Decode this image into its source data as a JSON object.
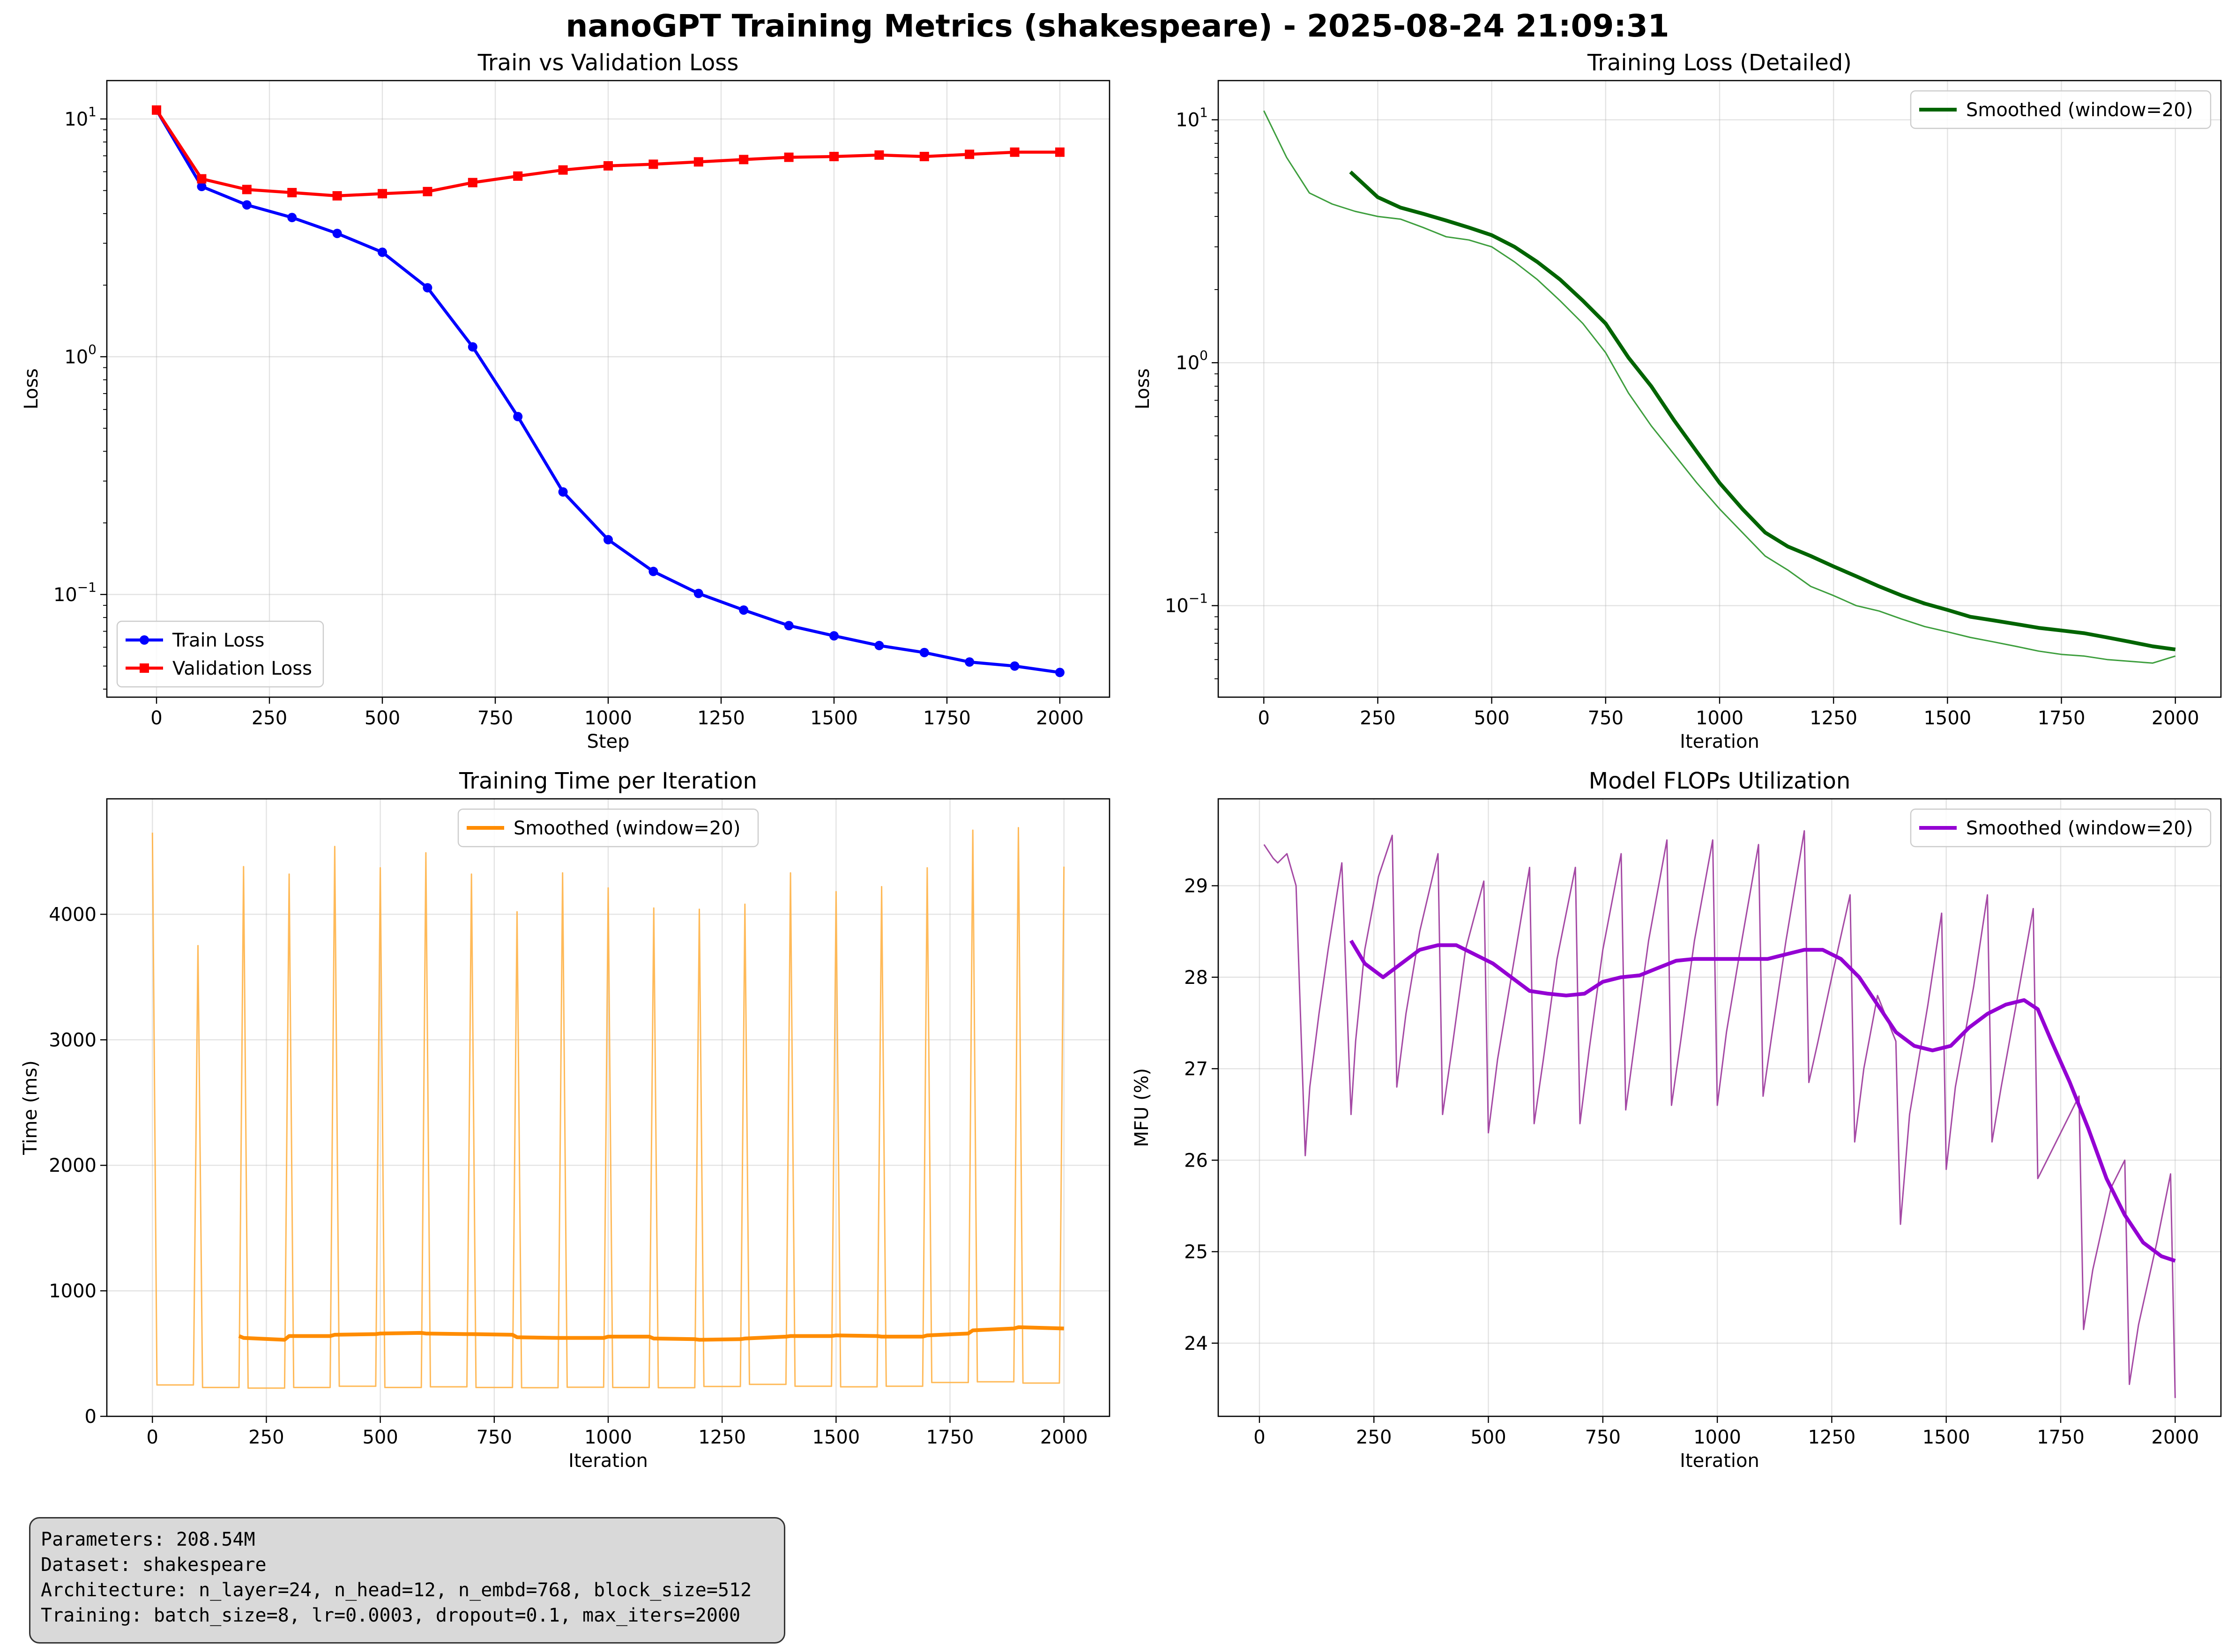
{
  "figure": {
    "title": "nanoGPT Training Metrics (shakespeare) - 2025-08-24 21:09:31"
  },
  "info_box": {
    "lines": [
      "Parameters: 208.54M",
      "Dataset: shakespeare",
      "Architecture: n_layer=24, n_head=12, n_embd=768, block_size=512",
      "Training: batch_size=8, lr=0.0003, dropout=0.1, max_iters=2000"
    ]
  },
  "chart_data": [
    {
      "id": "loss",
      "type": "line",
      "title": "Train vs Validation Loss",
      "xlabel": "Step",
      "ylabel": "Loss",
      "yscale": "log",
      "xlim": [
        -110,
        2110
      ],
      "ylim": [
        0.037,
        14.5
      ],
      "xticks": [
        0,
        250,
        500,
        750,
        1000,
        1250,
        1500,
        1750,
        2000
      ],
      "yticks": [
        {
          "value": 0.1,
          "label": "10",
          "exp": "−1"
        },
        {
          "value": 1,
          "label": "10",
          "exp": "0"
        },
        {
          "value": 10,
          "label": "10",
          "exp": "1"
        }
      ],
      "grid": true,
      "legend_position": "lower-left",
      "x": [
        0,
        100,
        200,
        300,
        400,
        500,
        600,
        700,
        800,
        900,
        1000,
        1100,
        1200,
        1300,
        1400,
        1500,
        1600,
        1700,
        1800,
        1900,
        2000
      ],
      "series": [
        {
          "name": "Train Loss",
          "color": "#0000ff",
          "marker": "circle",
          "values": [
            10.9,
            5.2,
            4.35,
            3.85,
            3.3,
            2.75,
            1.95,
            1.1,
            0.56,
            0.27,
            0.17,
            0.125,
            0.101,
            0.086,
            0.074,
            0.067,
            0.061,
            0.057,
            0.052,
            0.05,
            0.047
          ]
        },
        {
          "name": "Validation Loss",
          "color": "#ff0000",
          "marker": "square",
          "values": [
            10.9,
            5.6,
            5.05,
            4.9,
            4.75,
            4.85,
            4.95,
            5.4,
            5.75,
            6.1,
            6.35,
            6.45,
            6.6,
            6.75,
            6.9,
            6.95,
            7.05,
            6.95,
            7.1,
            7.25,
            7.25
          ]
        }
      ]
    },
    {
      "id": "trainloss",
      "type": "line",
      "title": "Training Loss (Detailed)",
      "xlabel": "Iteration",
      "ylabel": "Loss",
      "yscale": "log",
      "xlim": [
        -100,
        2100
      ],
      "ylim": [
        0.042,
        14.5
      ],
      "xticks": [
        0,
        250,
        500,
        750,
        1000,
        1250,
        1500,
        1750,
        2000
      ],
      "yticks": [
        {
          "value": 0.1,
          "label": "10",
          "exp": "−1"
        },
        {
          "value": 1,
          "label": "10",
          "exp": "0"
        },
        {
          "value": 10,
          "label": "10",
          "exp": "1"
        }
      ],
      "grid": true,
      "legend_position": "upper-right",
      "raw": {
        "color": "#339933",
        "x": [
          0,
          50,
          100,
          150,
          200,
          250,
          300,
          350,
          400,
          450,
          500,
          550,
          600,
          650,
          700,
          750,
          800,
          850,
          900,
          950,
          1000,
          1050,
          1100,
          1150,
          1200,
          1250,
          1300,
          1350,
          1400,
          1450,
          1500,
          1550,
          1600,
          1650,
          1700,
          1750,
          1800,
          1850,
          1900,
          1950,
          2000
        ],
        "values": [
          10.9,
          7.0,
          5.0,
          4.5,
          4.2,
          4.0,
          3.9,
          3.6,
          3.3,
          3.2,
          3.0,
          2.6,
          2.2,
          1.8,
          1.45,
          1.1,
          0.75,
          0.55,
          0.42,
          0.32,
          0.25,
          0.2,
          0.16,
          0.14,
          0.12,
          0.11,
          0.1,
          0.095,
          0.088,
          0.082,
          0.078,
          0.074,
          0.071,
          0.068,
          0.065,
          0.063,
          0.062,
          0.06,
          0.059,
          0.058,
          0.062
        ]
      },
      "series": [
        {
          "name": "Smoothed (window=20)",
          "color": "#006400",
          "x": [
            190,
            250,
            300,
            350,
            400,
            450,
            500,
            550,
            600,
            650,
            700,
            750,
            800,
            850,
            900,
            950,
            1000,
            1050,
            1100,
            1150,
            1200,
            1250,
            1300,
            1350,
            1400,
            1450,
            1500,
            1550,
            1600,
            1650,
            1700,
            1750,
            1800,
            1850,
            1900,
            1950,
            2000
          ],
          "values": [
            6.1,
            4.8,
            4.35,
            4.1,
            3.85,
            3.6,
            3.35,
            3.0,
            2.6,
            2.2,
            1.8,
            1.45,
            1.05,
            0.8,
            0.58,
            0.43,
            0.32,
            0.25,
            0.2,
            0.175,
            0.16,
            0.145,
            0.132,
            0.12,
            0.11,
            0.102,
            0.096,
            0.09,
            0.087,
            0.084,
            0.081,
            0.079,
            0.077,
            0.074,
            0.071,
            0.068,
            0.066
          ]
        }
      ]
    },
    {
      "id": "time",
      "type": "line",
      "title": "Training Time per Iteration",
      "xlabel": "Iteration",
      "ylabel": "Time (ms)",
      "yscale": "linear",
      "xlim": [
        -100,
        2100
      ],
      "ylim": [
        0,
        4920
      ],
      "xticks": [
        0,
        250,
        500,
        750,
        1000,
        1250,
        1500,
        1750,
        2000
      ],
      "yticks": [
        {
          "value": 0,
          "label": "0"
        },
        {
          "value": 1000,
          "label": "1000"
        },
        {
          "value": 2000,
          "label": "2000"
        },
        {
          "value": 3000,
          "label": "3000"
        },
        {
          "value": 4000,
          "label": "4000"
        }
      ],
      "grid": true,
      "legend_position": "upper-center",
      "raw": {
        "color": "#ffb347",
        "spikes": [
          {
            "x": 0,
            "value": 4650
          },
          {
            "x": 100,
            "value": 3750
          },
          {
            "x": 200,
            "value": 4380
          },
          {
            "x": 300,
            "value": 4320
          },
          {
            "x": 400,
            "value": 4540
          },
          {
            "x": 500,
            "value": 4370
          },
          {
            "x": 600,
            "value": 4490
          },
          {
            "x": 700,
            "value": 4320
          },
          {
            "x": 800,
            "value": 4020
          },
          {
            "x": 900,
            "value": 4330
          },
          {
            "x": 1000,
            "value": 4210
          },
          {
            "x": 1100,
            "value": 4050
          },
          {
            "x": 1200,
            "value": 4040
          },
          {
            "x": 1300,
            "value": 4080
          },
          {
            "x": 1400,
            "value": 4330
          },
          {
            "x": 1500,
            "value": 4180
          },
          {
            "x": 1600,
            "value": 4220
          },
          {
            "x": 1700,
            "value": 4370
          },
          {
            "x": 1800,
            "value": 4670
          },
          {
            "x": 1900,
            "value": 4690
          },
          {
            "x": 2000,
            "value": 4380
          }
        ],
        "baseline": [
          {
            "x0": 10,
            "x1": 90,
            "value": 250
          },
          {
            "x0": 110,
            "x1": 190,
            "value": 230
          },
          {
            "x0": 210,
            "x1": 290,
            "value": 225
          },
          {
            "x0": 310,
            "x1": 390,
            "value": 230
          },
          {
            "x0": 410,
            "x1": 490,
            "value": 240
          },
          {
            "x0": 510,
            "x1": 590,
            "value": 230
          },
          {
            "x0": 610,
            "x1": 690,
            "value": 235
          },
          {
            "x0": 710,
            "x1": 790,
            "value": 230
          },
          {
            "x0": 810,
            "x1": 890,
            "value": 228
          },
          {
            "x0": 910,
            "x1": 990,
            "value": 232
          },
          {
            "x0": 1010,
            "x1": 1090,
            "value": 230
          },
          {
            "x0": 1110,
            "x1": 1190,
            "value": 228
          },
          {
            "x0": 1210,
            "x1": 1290,
            "value": 238
          },
          {
            "x0": 1310,
            "x1": 1390,
            "value": 255
          },
          {
            "x0": 1410,
            "x1": 1490,
            "value": 240
          },
          {
            "x0": 1510,
            "x1": 1590,
            "value": 235
          },
          {
            "x0": 1610,
            "x1": 1690,
            "value": 240
          },
          {
            "x0": 1710,
            "x1": 1790,
            "value": 270
          },
          {
            "x0": 1810,
            "x1": 1890,
            "value": 275
          },
          {
            "x0": 1910,
            "x1": 1990,
            "value": 265
          }
        ]
      },
      "series": [
        {
          "name": "Smoothed (window=20)",
          "color": "#ff8c00",
          "x": [
            190,
            200,
            290,
            300,
            390,
            400,
            490,
            500,
            590,
            600,
            690,
            700,
            790,
            800,
            890,
            900,
            990,
            1000,
            1090,
            1100,
            1190,
            1200,
            1290,
            1300,
            1390,
            1400,
            1490,
            1500,
            1590,
            1600,
            1690,
            1700,
            1790,
            1800,
            1890,
            1900,
            2000
          ],
          "values": [
            640,
            625,
            610,
            640,
            640,
            650,
            655,
            660,
            665,
            660,
            655,
            655,
            650,
            630,
            625,
            625,
            625,
            635,
            635,
            620,
            615,
            610,
            615,
            620,
            635,
            640,
            640,
            645,
            640,
            635,
            635,
            645,
            660,
            685,
            700,
            710,
            700
          ]
        }
      ]
    },
    {
      "id": "mfu",
      "type": "line",
      "title": "Model FLOPs Utilization",
      "xlabel": "Iteration",
      "ylabel": "MFU (%)",
      "yscale": "linear",
      "xlim": [
        -90,
        2100
      ],
      "ylim": [
        23.2,
        29.95
      ],
      "xticks": [
        0,
        250,
        500,
        750,
        1000,
        1250,
        1500,
        1750,
        2000
      ],
      "yticks": [
        {
          "value": 24,
          "label": "24"
        },
        {
          "value": 25,
          "label": "25"
        },
        {
          "value": 26,
          "label": "26"
        },
        {
          "value": 27,
          "label": "27"
        },
        {
          "value": 28,
          "label": "28"
        },
        {
          "value": 29,
          "label": "29"
        }
      ],
      "grid": true,
      "legend_position": "upper-right",
      "raw": {
        "color": "#a040a0",
        "x": [
          10,
          30,
          40,
          60,
          80,
          100,
          110,
          130,
          150,
          180,
          200,
          210,
          230,
          260,
          290,
          300,
          320,
          350,
          390,
          400,
          420,
          450,
          490,
          500,
          520,
          550,
          590,
          600,
          620,
          650,
          690,
          700,
          720,
          750,
          790,
          800,
          820,
          850,
          890,
          900,
          920,
          950,
          990,
          1000,
          1020,
          1050,
          1090,
          1100,
          1120,
          1150,
          1190,
          1200,
          1220,
          1250,
          1290,
          1300,
          1320,
          1350,
          1390,
          1400,
          1420,
          1460,
          1490,
          1500,
          1520,
          1560,
          1590,
          1600,
          1620,
          1660,
          1690,
          1700,
          1720,
          1760,
          1790,
          1800,
          1820,
          1860,
          1890,
          1900,
          1920,
          1960,
          1990,
          2000
        ],
        "values": [
          29.45,
          29.3,
          29.25,
          29.35,
          29.0,
          26.05,
          26.8,
          27.6,
          28.3,
          29.25,
          26.5,
          27.3,
          28.3,
          29.1,
          29.55,
          26.8,
          27.6,
          28.5,
          29.35,
          26.5,
          27.2,
          28.3,
          29.05,
          26.3,
          27.1,
          28.0,
          29.2,
          26.4,
          27.1,
          28.2,
          29.2,
          26.4,
          27.2,
          28.3,
          29.35,
          26.55,
          27.3,
          28.4,
          29.5,
          26.6,
          27.3,
          28.4,
          29.5,
          26.6,
          27.4,
          28.3,
          29.45,
          26.7,
          27.4,
          28.4,
          29.6,
          26.85,
          27.3,
          28.0,
          28.9,
          26.2,
          27.0,
          27.8,
          27.3,
          25.3,
          26.5,
          27.7,
          28.7,
          25.9,
          26.8,
          27.9,
          28.9,
          26.2,
          26.8,
          27.9,
          28.75,
          25.8,
          26.0,
          26.4,
          26.7,
          24.15,
          24.8,
          25.7,
          26.0,
          23.55,
          24.2,
          25.1,
          25.85,
          23.4
        ]
      },
      "series": [
        {
          "name": "Smoothed (window=20)",
          "color": "#9400d3",
          "x": [
            200,
            230,
            270,
            310,
            350,
            390,
            430,
            470,
            510,
            550,
            590,
            630,
            670,
            710,
            750,
            790,
            830,
            870,
            910,
            950,
            990,
            1030,
            1070,
            1110,
            1150,
            1190,
            1230,
            1270,
            1310,
            1350,
            1390,
            1430,
            1470,
            1510,
            1550,
            1590,
            1630,
            1670,
            1700,
            1730,
            1770,
            1810,
            1850,
            1890,
            1930,
            1970,
            2000
          ],
          "values": [
            28.4,
            28.15,
            28.0,
            28.15,
            28.3,
            28.35,
            28.35,
            28.25,
            28.15,
            28.0,
            27.85,
            27.82,
            27.8,
            27.82,
            27.95,
            28.0,
            28.02,
            28.1,
            28.18,
            28.2,
            28.2,
            28.2,
            28.2,
            28.2,
            28.25,
            28.3,
            28.3,
            28.2,
            28.0,
            27.7,
            27.4,
            27.25,
            27.2,
            27.25,
            27.45,
            27.6,
            27.7,
            27.75,
            27.65,
            27.3,
            26.85,
            26.35,
            25.8,
            25.4,
            25.1,
            24.95,
            24.9
          ]
        }
      ]
    }
  ]
}
